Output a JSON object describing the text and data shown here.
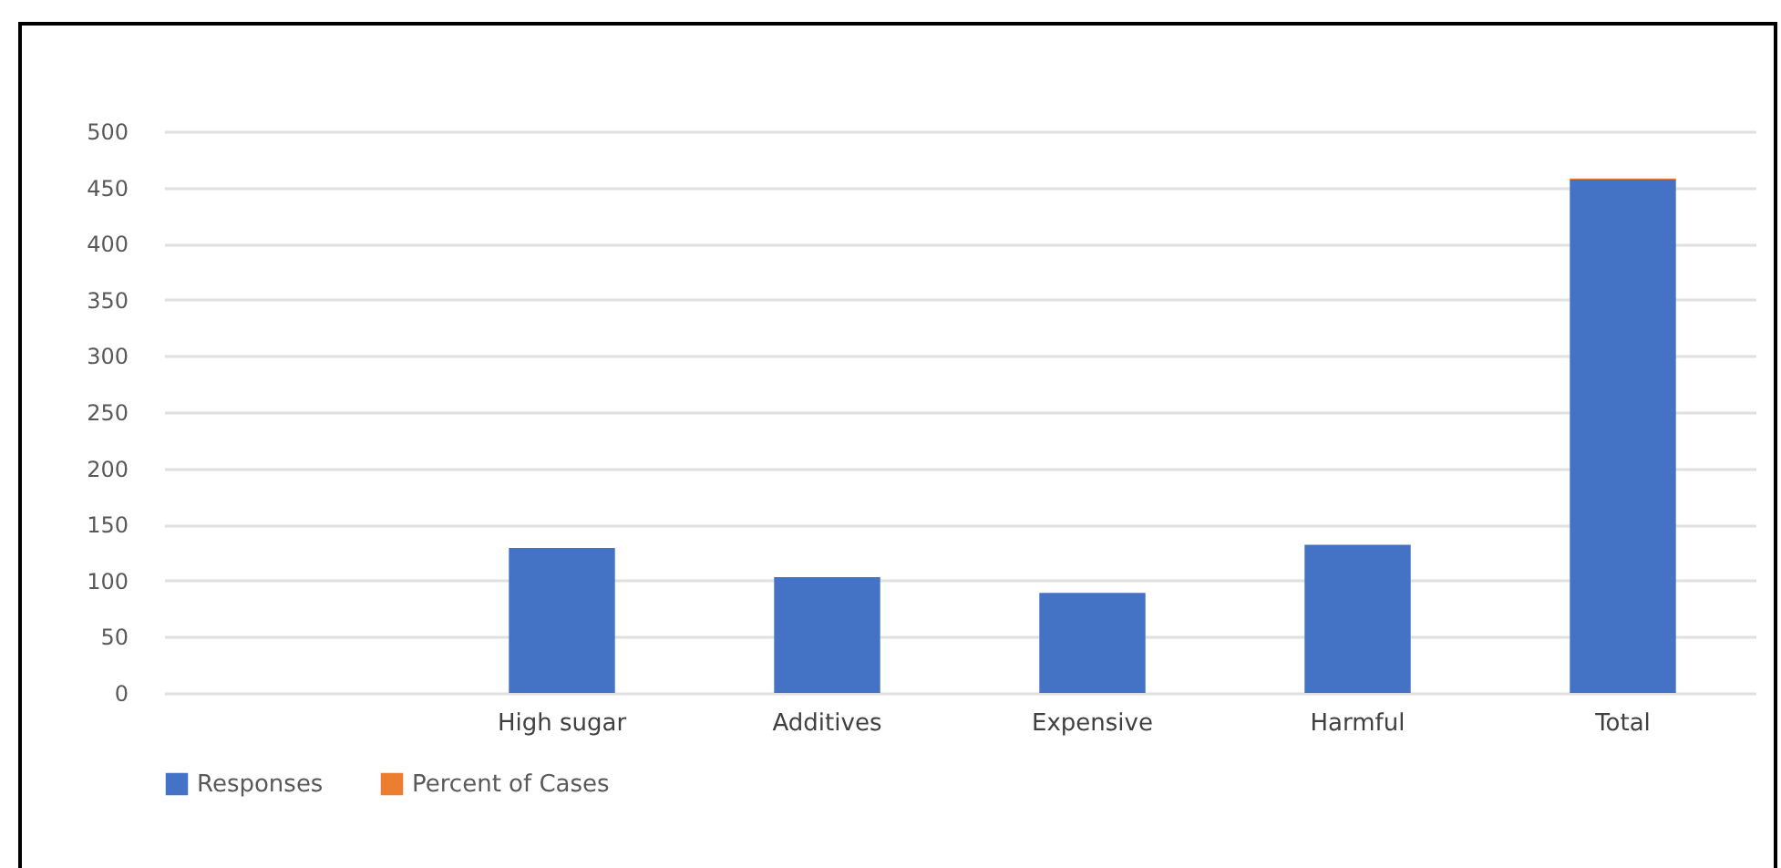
{
  "chart_data": {
    "type": "bar",
    "stacked": true,
    "categories": [
      null,
      "High sugar",
      "Additives",
      "Expensive",
      "Harmful",
      "Total"
    ],
    "series": [
      {
        "name": "Responses",
        "color": "#4472c4",
        "values": [
          null,
          129,
          103,
          89,
          132,
          457
        ]
      },
      {
        "name": "Percent of Cases",
        "color": "#ed7d31",
        "values": [
          null,
          null,
          null,
          null,
          null,
          1
        ]
      }
    ],
    "ylim": [
      0,
      500
    ],
    "yticks": [
      0,
      50,
      100,
      150,
      200,
      250,
      300,
      350,
      400,
      450,
      500
    ],
    "grid": "y",
    "legend": "bottom"
  }
}
